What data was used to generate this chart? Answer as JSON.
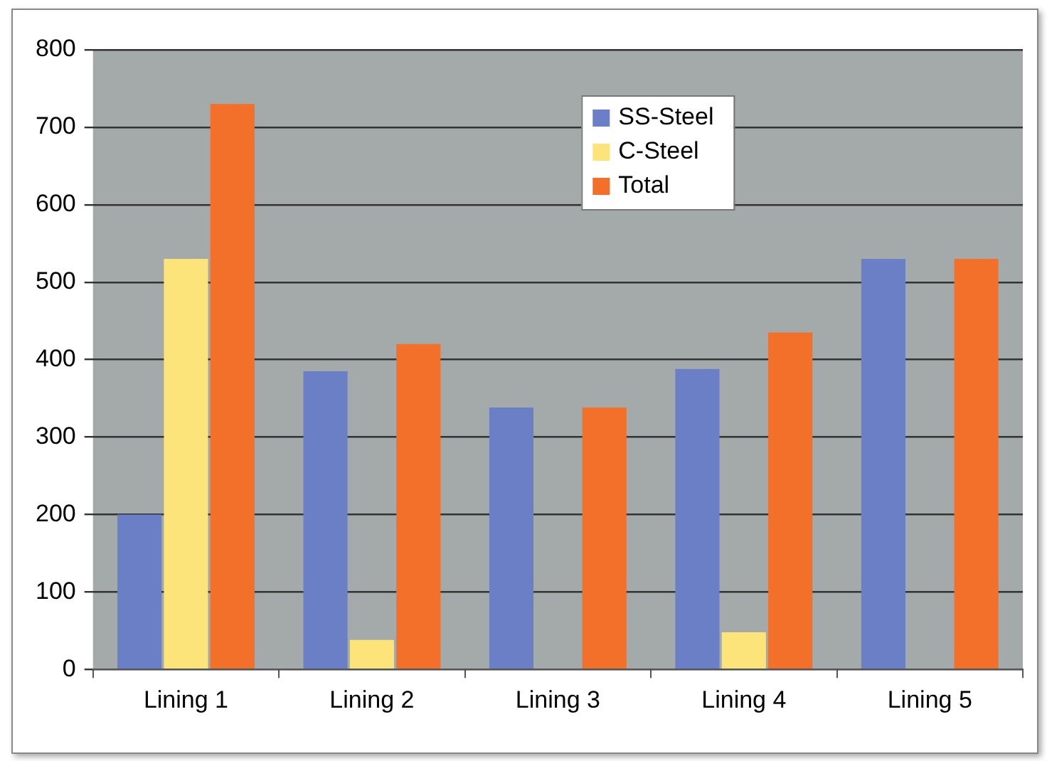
{
  "chart_data": {
    "type": "bar",
    "categories": [
      "Lining 1",
      "Lining 2",
      "Lining 3",
      "Lining 4",
      "Lining 5"
    ],
    "series": [
      {
        "name": "SS-Steel",
        "color": "#6a7fc6",
        "values": [
          200,
          385,
          338,
          388,
          530
        ]
      },
      {
        "name": "C-Steel",
        "color": "#fde47a",
        "values": [
          530,
          38,
          0,
          48,
          0
        ]
      },
      {
        "name": "Total",
        "color": "#f2702a",
        "values": [
          730,
          420,
          338,
          435,
          530
        ]
      }
    ],
    "ylim": [
      0,
      800
    ],
    "yticks": [
      0,
      100,
      200,
      300,
      400,
      500,
      600,
      700,
      800
    ],
    "grid": "y",
    "legend": "top"
  }
}
